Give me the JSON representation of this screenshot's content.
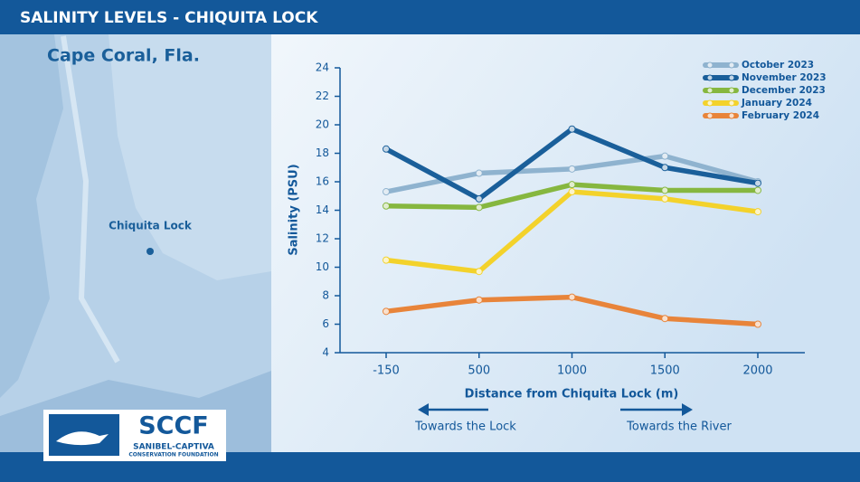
{
  "chart_data": {
    "type": "line",
    "title": "SALINITY LEVELS - CHIQUITA LOCK",
    "location": "Cape Coral, Fla.",
    "map_label": "Chiquita Lock",
    "logo": {
      "name": "SCCF",
      "line1": "SANIBEL-CAPTIVA",
      "line2": "CONSERVATION FOUNDATION"
    },
    "x_label": "Distance from Chiquita Lock (m)",
    "y_label": "Salinity (PSU)",
    "annotations": [
      "Towards the Lock",
      "Towards the River"
    ],
    "categories": [
      "-150",
      "500",
      "1000",
      "1500",
      "2000"
    ],
    "ylim": [
      4,
      24
    ],
    "yticks": [
      4,
      6,
      8,
      10,
      12,
      14,
      16,
      18,
      20,
      22,
      24
    ],
    "legend": "top-right",
    "series": [
      {
        "name": "October 2023",
        "color": "#8fb3cf",
        "values": [
          15.3,
          16.6,
          16.9,
          17.8,
          16.0
        ]
      },
      {
        "name": "November 2023",
        "color": "#1a5f9a",
        "values": [
          18.3,
          14.8,
          19.7,
          17.0,
          15.9
        ]
      },
      {
        "name": "December 2023",
        "color": "#86b73f",
        "values": [
          14.3,
          14.2,
          15.8,
          15.4,
          15.4
        ]
      },
      {
        "name": "January 2024",
        "color": "#f3d22b",
        "values": [
          10.5,
          9.7,
          15.3,
          14.8,
          13.9
        ]
      },
      {
        "name": "February 2024",
        "color": "#e8843a",
        "values": [
          6.9,
          7.7,
          7.9,
          6.4,
          6.0
        ]
      }
    ]
  }
}
